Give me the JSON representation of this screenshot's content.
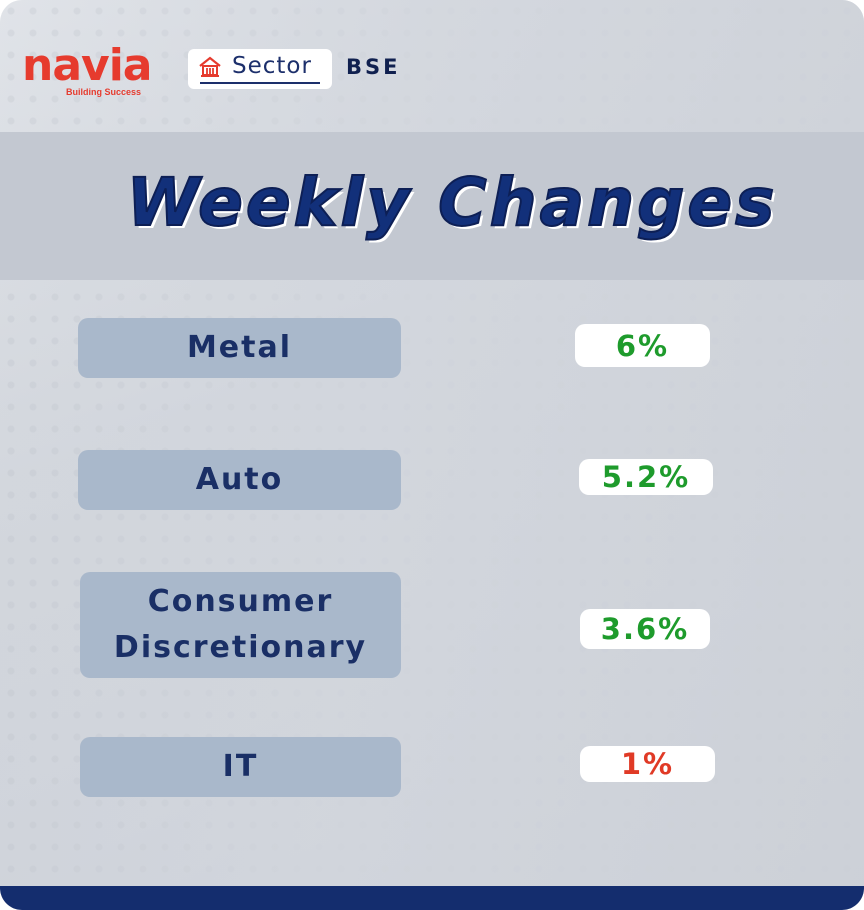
{
  "brand": {
    "logo_text": "navia",
    "tagline": "Building Success",
    "logo_color": "#e63b2e"
  },
  "header": {
    "sector_label": "Sector",
    "sector_icon": "building-icon",
    "exchange": "BSE"
  },
  "banner": {
    "title": "Weekly Changes"
  },
  "sectors": [
    {
      "name": "Metal",
      "change": "6%",
      "direction": "up"
    },
    {
      "name": "Auto",
      "change": "5.2%",
      "direction": "up"
    },
    {
      "name": "Consumer Discretionary",
      "change": "3.6%",
      "direction": "up"
    },
    {
      "name": "IT",
      "change": "1%",
      "direction": "down"
    }
  ],
  "colors": {
    "positive": "#1e9b2c",
    "negative": "#e03a26",
    "navy": "#142d6e",
    "label_bg": "#a9b8cb"
  }
}
